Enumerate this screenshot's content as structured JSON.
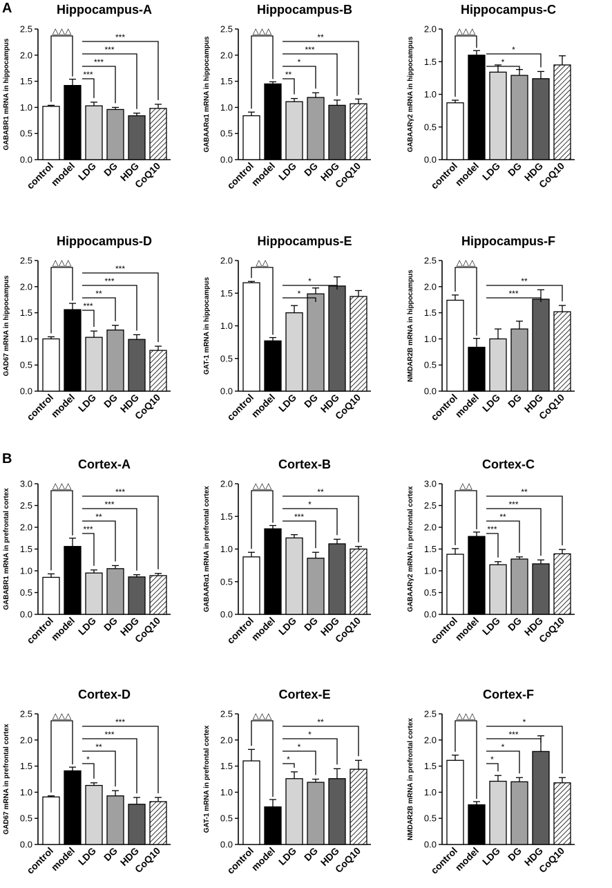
{
  "panel_labels": [
    "A",
    "B"
  ],
  "legend_patterns": {
    "control": "white",
    "model": "black",
    "LDG": "light-grey",
    "DG": "mid-grey",
    "HDG": "dark-grey",
    "CoQ10": "hatched"
  },
  "colors": {
    "control": "#ffffff",
    "model": "#000000",
    "LDG": "#d4d4d4",
    "DG": "#a0a0a0",
    "HDG": "#5c5c5c",
    "CoQ10": "#ffffff",
    "stroke": "#000000"
  },
  "chart_data": [
    {
      "type": "bar",
      "title": "Hippocampus-A",
      "ylabel": "GABABR1 mRNA in hippocampus",
      "categories": [
        "control",
        "model",
        "LDG",
        "DG",
        "HDG",
        "CoQ10"
      ],
      "values": [
        1.02,
        1.42,
        1.03,
        0.96,
        0.84,
        0.98
      ],
      "errors": [
        0.02,
        0.12,
        0.07,
        0.04,
        0.05,
        0.08
      ],
      "ylim": [
        0,
        2.5
      ],
      "yticks": [
        "0.0",
        "0.5",
        "1.0",
        "1.5",
        "2.0",
        "2.5"
      ],
      "delta": "△△△",
      "comparisons": [
        {
          "to": "LDG",
          "sig": "***"
        },
        {
          "to": "DG",
          "sig": "***"
        },
        {
          "to": "HDG",
          "sig": "***"
        },
        {
          "to": "CoQ10",
          "sig": "***"
        }
      ]
    },
    {
      "type": "bar",
      "title": "Hippocampus-B",
      "ylabel": "GABAARα1 mRNA in hippocampus",
      "categories": [
        "control",
        "model",
        "LDG",
        "DG",
        "HDG",
        "CoQ10"
      ],
      "values": [
        0.84,
        1.45,
        1.11,
        1.19,
        1.04,
        1.07
      ],
      "errors": [
        0.07,
        0.04,
        0.06,
        0.09,
        0.1,
        0.09
      ],
      "ylim": [
        0,
        2.5
      ],
      "yticks": [
        "0.0",
        "0.5",
        "1.0",
        "1.5",
        "2.0",
        "2.5"
      ],
      "delta": "△△△",
      "comparisons": [
        {
          "to": "LDG",
          "sig": "**"
        },
        {
          "to": "DG",
          "sig": "*"
        },
        {
          "to": "HDG",
          "sig": "***"
        },
        {
          "to": "CoQ10",
          "sig": "**"
        }
      ]
    },
    {
      "type": "bar",
      "title": "Hippocampus-C",
      "ylabel": "GABAARγ2 mRNA in hippocampus",
      "categories": [
        "control",
        "model",
        "LDG",
        "DG",
        "HDG",
        "CoQ10"
      ],
      "values": [
        0.87,
        1.6,
        1.34,
        1.29,
        1.24,
        1.45
      ],
      "errors": [
        0.04,
        0.07,
        0.11,
        0.09,
        0.11,
        0.14
      ],
      "ylim": [
        0,
        2.0
      ],
      "yticks": [
        "0.0",
        "0.5",
        "1.0",
        "1.5",
        "2.0"
      ],
      "delta": "△△△",
      "comparisons": [
        {
          "to": "DG",
          "sig": "*"
        },
        {
          "to": "HDG",
          "sig": "*"
        }
      ]
    },
    {
      "type": "bar",
      "title": "Hippocampus-D",
      "ylabel": "GAD67 mRNA in hippocampus",
      "categories": [
        "control",
        "model",
        "LDG",
        "DG",
        "HDG",
        "CoQ10"
      ],
      "values": [
        1.0,
        1.56,
        1.03,
        1.17,
        0.99,
        0.78
      ],
      "errors": [
        0.04,
        0.12,
        0.12,
        0.09,
        0.09,
        0.08
      ],
      "ylim": [
        0,
        2.5
      ],
      "yticks": [
        "0.0",
        "0.5",
        "1.0",
        "1.5",
        "2.0",
        "2.5"
      ],
      "delta": "△△△",
      "comparisons": [
        {
          "to": "LDG",
          "sig": "***"
        },
        {
          "to": "DG",
          "sig": "**"
        },
        {
          "to": "HDG",
          "sig": "***"
        },
        {
          "to": "CoQ10",
          "sig": "***"
        }
      ]
    },
    {
      "type": "bar",
      "title": "Hippocampus-E",
      "ylabel": "GAT-1 mRNA in hippocampus",
      "categories": [
        "control",
        "model",
        "LDG",
        "DG",
        "HDG",
        "CoQ10"
      ],
      "values": [
        1.66,
        0.77,
        1.2,
        1.49,
        1.61,
        1.45
      ],
      "errors": [
        0.02,
        0.05,
        0.11,
        0.09,
        0.14,
        0.09
      ],
      "ylim": [
        0,
        2.0
      ],
      "yticks": [
        "0.0",
        "0.5",
        "1.0",
        "1.5",
        "2.0"
      ],
      "delta": "△△",
      "comparisons": [
        {
          "to": "DG",
          "sig": "*"
        },
        {
          "to": "HDG",
          "sig": "*"
        }
      ]
    },
    {
      "type": "bar",
      "title": "Hippocampus-F",
      "ylabel": "NMDAR2B mRNA in hippocampus",
      "categories": [
        "control",
        "model",
        "LDG",
        "DG",
        "HDG",
        "CoQ10"
      ],
      "values": [
        1.74,
        0.84,
        1.0,
        1.19,
        1.76,
        1.52
      ],
      "errors": [
        0.1,
        0.17,
        0.19,
        0.15,
        0.18,
        0.12
      ],
      "ylim": [
        0,
        2.5
      ],
      "yticks": [
        "0.0",
        "0.5",
        "1.0",
        "1.5",
        "2.0",
        "2.5"
      ],
      "delta": "△△△",
      "comparisons": [
        {
          "to": "HDG",
          "sig": "***"
        },
        {
          "to": "CoQ10",
          "sig": "**"
        }
      ]
    },
    {
      "type": "bar",
      "title": "Cortex-A",
      "ylabel": "GABABR1 mRNA in prefrontal cortex",
      "categories": [
        "control",
        "model",
        "LDG",
        "DG",
        "HDG",
        "CoQ10"
      ],
      "values": [
        0.85,
        1.56,
        0.95,
        1.05,
        0.86,
        0.89
      ],
      "errors": [
        0.08,
        0.19,
        0.07,
        0.07,
        0.05,
        0.05
      ],
      "ylim": [
        0,
        3.0
      ],
      "yticks": [
        "0.0",
        "0.5",
        "1.0",
        "1.5",
        "2.0",
        "2.5",
        "3.0"
      ],
      "delta": "△△△",
      "comparisons": [
        {
          "to": "LDG",
          "sig": "***"
        },
        {
          "to": "DG",
          "sig": "**"
        },
        {
          "to": "HDG",
          "sig": "***"
        },
        {
          "to": "CoQ10",
          "sig": "***"
        }
      ]
    },
    {
      "type": "bar",
      "title": "Cortex-B",
      "ylabel": "GABAARα1 mRNA in prefrontal cortex",
      "categories": [
        "control",
        "model",
        "LDG",
        "DG",
        "HDG",
        "CoQ10"
      ],
      "values": [
        0.88,
        1.31,
        1.17,
        0.86,
        1.08,
        1.0
      ],
      "errors": [
        0.07,
        0.05,
        0.05,
        0.09,
        0.07,
        0.04
      ],
      "ylim": [
        0,
        2.0
      ],
      "yticks": [
        "0.0",
        "0.5",
        "1.0",
        "1.5",
        "2.0"
      ],
      "delta": "△△△",
      "comparisons": [
        {
          "to": "DG",
          "sig": "***"
        },
        {
          "to": "HDG",
          "sig": "*"
        },
        {
          "to": "CoQ10",
          "sig": "**"
        }
      ]
    },
    {
      "type": "bar",
      "title": "Cortex-C",
      "ylabel": "GABAARγ2 mRNA in prefrontal cortex",
      "categories": [
        "control",
        "model",
        "LDG",
        "DG",
        "HDG",
        "CoQ10"
      ],
      "values": [
        1.38,
        1.79,
        1.14,
        1.27,
        1.16,
        1.39
      ],
      "errors": [
        0.13,
        0.1,
        0.07,
        0.05,
        0.09,
        0.1
      ],
      "ylim": [
        0,
        3.0
      ],
      "yticks": [
        "0.0",
        "0.5",
        "1.0",
        "1.5",
        "2.0",
        "2.5",
        "3.0"
      ],
      "delta": "△△",
      "comparisons": [
        {
          "to": "LDG",
          "sig": "***"
        },
        {
          "to": "DG",
          "sig": "**"
        },
        {
          "to": "HDG",
          "sig": "***"
        },
        {
          "to": "CoQ10",
          "sig": "**"
        }
      ]
    },
    {
      "type": "bar",
      "title": "Cortex-D",
      "ylabel": "GAD67 mRNA in prefrontal cortex",
      "categories": [
        "control",
        "model",
        "LDG",
        "DG",
        "HDG",
        "CoQ10"
      ],
      "values": [
        0.91,
        1.41,
        1.13,
        0.93,
        0.77,
        0.82
      ],
      "errors": [
        0.02,
        0.07,
        0.05,
        0.1,
        0.13,
        0.08
      ],
      "ylim": [
        0,
        2.5
      ],
      "yticks": [
        "0.0",
        "0.5",
        "1.0",
        "1.5",
        "2.0",
        "2.5"
      ],
      "delta": "△△△",
      "comparisons": [
        {
          "to": "LDG",
          "sig": "*"
        },
        {
          "to": "DG",
          "sig": "**"
        },
        {
          "to": "HDG",
          "sig": "***"
        },
        {
          "to": "CoQ10",
          "sig": "***"
        }
      ]
    },
    {
      "type": "bar",
      "title": "Cortex-E",
      "ylabel": "GAT-1 mRNA in prefrontal cortex",
      "categories": [
        "control",
        "model",
        "LDG",
        "DG",
        "HDG",
        "CoQ10"
      ],
      "values": [
        1.6,
        0.72,
        1.26,
        1.19,
        1.26,
        1.44
      ],
      "errors": [
        0.22,
        0.14,
        0.13,
        0.06,
        0.19,
        0.17
      ],
      "ylim": [
        0,
        2.5
      ],
      "yticks": [
        "0.0",
        "0.5",
        "1.0",
        "1.5",
        "2.0",
        "2.5"
      ],
      "delta": "△△△",
      "comparisons": [
        {
          "to": "LDG",
          "sig": "*"
        },
        {
          "to": "DG",
          "sig": "*"
        },
        {
          "to": "HDG",
          "sig": "*"
        },
        {
          "to": "CoQ10",
          "sig": "**"
        }
      ]
    },
    {
      "type": "bar",
      "title": "Cortex-F",
      "ylabel": "NMDAR2B mRNA in prefrontal cortex",
      "categories": [
        "control",
        "model",
        "LDG",
        "DG",
        "HDG",
        "CoQ10"
      ],
      "values": [
        1.61,
        0.76,
        1.21,
        1.2,
        1.78,
        1.18
      ],
      "errors": [
        0.1,
        0.06,
        0.11,
        0.08,
        0.3,
        0.1
      ],
      "ylim": [
        0,
        2.5
      ],
      "yticks": [
        "0.0",
        "0.5",
        "1.0",
        "1.5",
        "2.0",
        "2.5"
      ],
      "delta": "△△△",
      "comparisons": [
        {
          "to": "LDG",
          "sig": "*"
        },
        {
          "to": "DG",
          "sig": "*"
        },
        {
          "to": "HDG",
          "sig": "***"
        },
        {
          "to": "CoQ10",
          "sig": "*"
        }
      ]
    }
  ]
}
